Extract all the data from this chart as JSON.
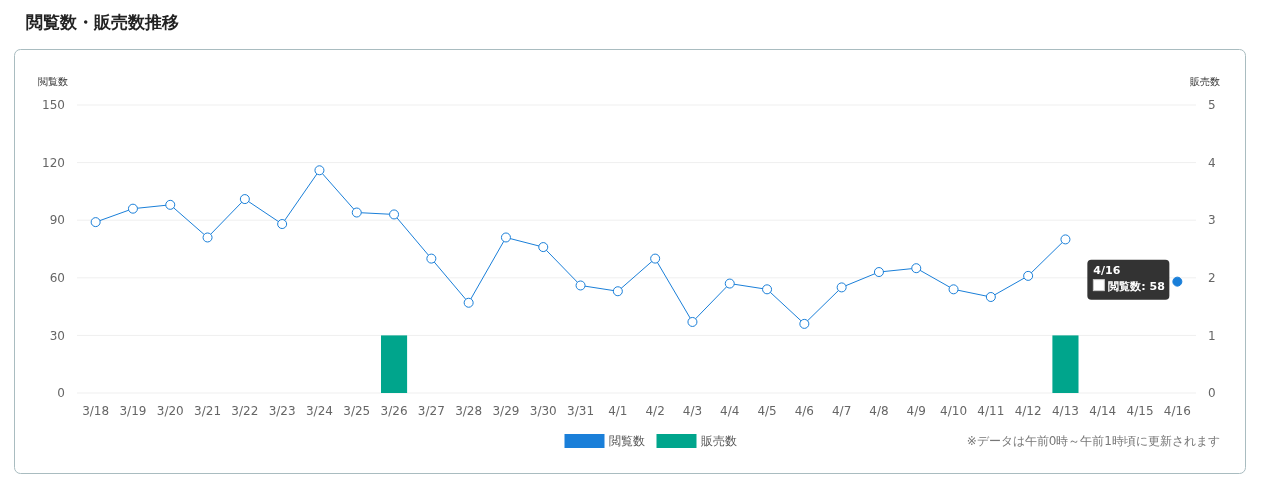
{
  "chart_data": {
    "type": "bar",
    "title": "閲覧数・販売数推移",
    "ylabel": "閲覧数",
    "y2label": "販売数",
    "categories": [
      "3/18",
      "3/19",
      "3/20",
      "3/21",
      "3/22",
      "3/23",
      "3/24",
      "3/25",
      "3/26",
      "3/27",
      "3/28",
      "3/29",
      "3/30",
      "3/31",
      "4/1",
      "4/2",
      "4/3",
      "4/4",
      "4/5",
      "4/6",
      "4/7",
      "4/8",
      "4/9",
      "4/10",
      "4/11",
      "4/12",
      "4/13",
      "4/14",
      "4/15",
      "4/16"
    ],
    "series": [
      {
        "name": "閲覧数",
        "type": "line",
        "color": "#1a7fd9",
        "values": [
          89,
          96,
          98,
          81,
          101,
          88,
          116,
          94,
          93,
          70,
          47,
          81,
          76,
          56,
          53,
          70,
          37,
          57,
          54,
          36,
          55,
          63,
          65,
          54,
          50,
          61,
          80,
          null,
          null,
          58
        ]
      },
      {
        "name": "販売数",
        "axis": "y2",
        "color": "#00a58c",
        "values": [
          0,
          0,
          0,
          0,
          0,
          0,
          0,
          0,
          1,
          0,
          0,
          0,
          0,
          0,
          0,
          0,
          0,
          0,
          0,
          0,
          0,
          0,
          0,
          0,
          0,
          0,
          1,
          0,
          0,
          0
        ]
      }
    ],
    "ylim": [
      0,
      150
    ],
    "yticks": [
      0,
      30,
      60,
      90,
      120,
      150
    ],
    "y2lim": [
      0,
      5
    ],
    "y2ticks": [
      0,
      1,
      2,
      3,
      4,
      5
    ],
    "grid": "y",
    "legend": "bottom",
    "marker": "circle",
    "annotations": [
      {
        "text": "4/16\n閲覧数: 58",
        "x": "4/16",
        "y": 58
      },
      "※データは午前0時～午前1時頃に更新されます"
    ]
  }
}
